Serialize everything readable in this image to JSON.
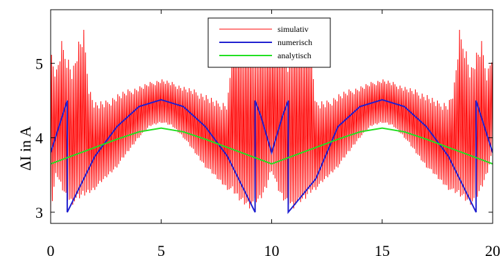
{
  "chart_data": {
    "type": "line",
    "title": "",
    "xlabel": "",
    "ylabel": "ΔI in A",
    "xlim": [
      0,
      20
    ],
    "ylim": [
      2.85,
      5.72
    ],
    "x_ticks": [
      0,
      5,
      10,
      15,
      20
    ],
    "y_ticks": [
      3,
      4,
      5
    ],
    "x_tick_labels": [
      "0",
      "5",
      "10",
      "15",
      "20"
    ],
    "y_tick_labels": [
      "3",
      "4",
      "5"
    ],
    "grid": false,
    "legend_position": "top-center",
    "series": [
      {
        "name": "simulativ",
        "color": "#ff0000",
        "description": "high-frequency ripple oscillating between lower and upper envelope",
        "envelope": {
          "x": [
            0,
            0.25,
            0.5,
            0.75,
            1.0,
            1.25,
            1.5,
            1.75,
            2.0,
            2.5,
            3.0,
            3.5,
            4.0,
            4.5,
            5.0,
            5.5,
            6.0,
            6.5,
            7.0,
            7.5,
            8.0,
            8.25,
            8.5,
            8.75,
            9.0,
            9.25,
            9.5,
            9.75,
            10.0,
            10.25,
            10.5,
            10.75,
            11.0,
            11.25,
            11.5,
            11.75,
            12.0,
            12.5,
            13.0,
            13.5,
            14.0,
            14.5,
            15.0,
            15.5,
            16.0,
            16.5,
            17.0,
            17.5,
            18.0,
            18.25,
            18.5,
            18.75,
            19.0,
            19.25,
            19.5,
            19.75,
            20.0
          ],
          "low": [
            2.95,
            3.5,
            3.3,
            3.15,
            3.1,
            3.15,
            3.2,
            3.25,
            3.3,
            3.45,
            3.6,
            3.8,
            4.0,
            4.15,
            4.2,
            4.15,
            4.0,
            3.8,
            3.6,
            3.45,
            3.3,
            3.25,
            3.15,
            3.1,
            3.05,
            3.1,
            3.15,
            3.3,
            3.55,
            3.3,
            3.15,
            3.1,
            3.05,
            3.1,
            3.15,
            3.25,
            3.3,
            3.45,
            3.6,
            3.8,
            4.0,
            4.15,
            4.2,
            4.15,
            4.0,
            3.8,
            3.6,
            3.45,
            3.3,
            3.25,
            3.2,
            3.15,
            3.1,
            3.15,
            3.3,
            3.5,
            3.8
          ],
          "high": [
            5.2,
            4.9,
            5.3,
            5.15,
            4.95,
            5.3,
            5.45,
            4.7,
            4.5,
            4.5,
            4.6,
            4.65,
            4.7,
            4.75,
            4.8,
            4.75,
            4.7,
            4.65,
            4.6,
            4.5,
            4.5,
            5.35,
            5.2,
            5.25,
            5.3,
            5.1,
            5.2,
            5.25,
            5.3,
            5.25,
            5.2,
            5.1,
            5.3,
            5.25,
            5.2,
            5.35,
            4.5,
            4.5,
            4.6,
            4.65,
            4.7,
            4.75,
            4.8,
            4.75,
            4.7,
            4.65,
            4.6,
            4.5,
            4.5,
            4.7,
            5.45,
            5.3,
            4.95,
            5.15,
            5.3,
            4.9,
            5.2
          ]
        }
      },
      {
        "name": "numerisch",
        "color": "#1f1fd0",
        "x": [
          0,
          0.75,
          0.75,
          1.5,
          2.0,
          3.0,
          4.0,
          5.0,
          6.0,
          7.0,
          8.0,
          9.25,
          9.25,
          9.5,
          10.0,
          10.5,
          10.75,
          10.75,
          12.0,
          13.0,
          14.0,
          15.0,
          16.0,
          17.0,
          18.0,
          19.25,
          19.25,
          20.0
        ],
        "y": [
          3.8,
          4.5,
          3.0,
          3.45,
          3.75,
          4.15,
          4.42,
          4.51,
          4.42,
          4.15,
          3.75,
          3.0,
          4.5,
          4.3,
          3.8,
          4.3,
          4.5,
          3.0,
          3.45,
          4.15,
          4.42,
          4.51,
          4.42,
          4.15,
          3.75,
          3.0,
          4.5,
          3.8
        ]
      },
      {
        "name": "analytisch",
        "color": "#22e022",
        "x": [
          0,
          1,
          2,
          3,
          4,
          5,
          6,
          7,
          8,
          9,
          10,
          11,
          12,
          13,
          14,
          15,
          16,
          17,
          18,
          19,
          20
        ],
        "y": [
          3.65,
          3.76,
          3.87,
          3.98,
          4.08,
          4.13,
          4.08,
          3.98,
          3.87,
          3.76,
          3.65,
          3.76,
          3.87,
          3.98,
          4.08,
          4.13,
          4.08,
          3.98,
          3.87,
          3.76,
          3.65
        ]
      }
    ]
  }
}
